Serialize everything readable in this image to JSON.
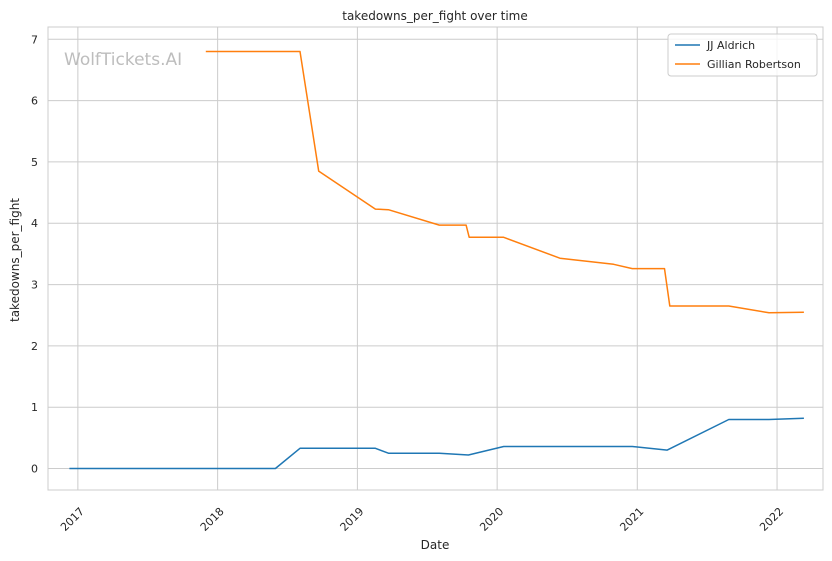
{
  "chart_data": {
    "type": "line",
    "title": "takedowns_per_fight over time",
    "xlabel": "Date",
    "ylabel": "takedowns_per_fight",
    "watermark": "WolfTickets.AI",
    "x_ticks": [
      "2017",
      "2018",
      "2019",
      "2020",
      "2021",
      "2022"
    ],
    "y_ticks": [
      "0",
      "1",
      "2",
      "3",
      "4",
      "5",
      "6",
      "7"
    ],
    "xlim": [
      "2016-10-15",
      "2022-05-01"
    ],
    "ylim": [
      -0.35,
      7.2
    ],
    "grid": true,
    "legend_position": "top-right",
    "series": [
      {
        "name": "JJ Aldrich",
        "color": "#1f77b4",
        "points": [
          [
            "2016-12-10",
            0.0
          ],
          [
            "2018-06-01",
            0.0
          ],
          [
            "2018-08-04",
            0.33
          ],
          [
            "2019-02-17",
            0.33
          ],
          [
            "2019-03-23",
            0.25
          ],
          [
            "2019-08-03",
            0.25
          ],
          [
            "2019-10-18",
            0.22
          ],
          [
            "2020-01-18",
            0.36
          ],
          [
            "2020-12-19",
            0.36
          ],
          [
            "2021-03-20",
            0.3
          ],
          [
            "2021-08-28",
            0.8
          ],
          [
            "2021-12-11",
            0.8
          ],
          [
            "2022-03-12",
            0.82
          ]
        ]
      },
      {
        "name": "Gillian Robertson",
        "color": "#ff7f0e",
        "points": [
          [
            "2017-12-01",
            6.8
          ],
          [
            "2018-08-04",
            6.8
          ],
          [
            "2018-09-22",
            4.85
          ],
          [
            "2019-02-17",
            4.23
          ],
          [
            "2019-03-23",
            4.22
          ],
          [
            "2019-08-03",
            3.97
          ],
          [
            "2019-10-12",
            3.97
          ],
          [
            "2019-10-20",
            3.77
          ],
          [
            "2020-01-18",
            3.77
          ],
          [
            "2020-06-13",
            3.43
          ],
          [
            "2020-10-31",
            3.33
          ],
          [
            "2020-12-19",
            3.26
          ],
          [
            "2021-03-13",
            3.26
          ],
          [
            "2021-03-27",
            2.65
          ],
          [
            "2021-08-28",
            2.65
          ],
          [
            "2021-12-11",
            2.54
          ],
          [
            "2022-03-12",
            2.55
          ]
        ]
      }
    ]
  }
}
